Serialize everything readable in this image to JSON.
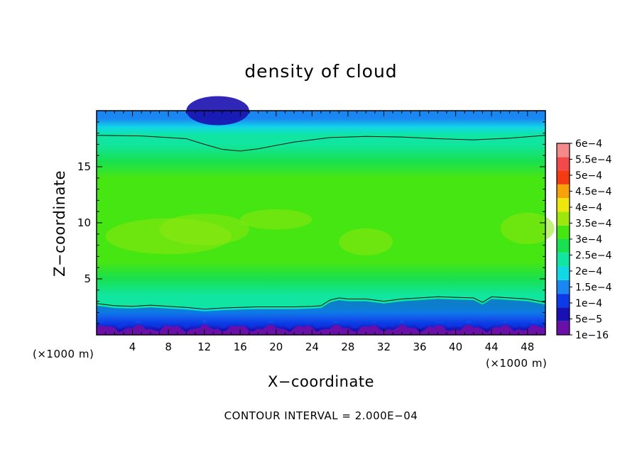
{
  "chart_data": {
    "type": "heatmap",
    "title": "density of cloud",
    "xlabel": "X−coordinate",
    "ylabel": "Z−coordinate",
    "x_unit": "(×1000 m)",
    "z_unit": "(×1000 m)",
    "footnote": "CONTOUR INTERVAL = 2.000E−04",
    "xlim": [
      0,
      50
    ],
    "ylim": [
      0,
      20
    ],
    "x_ticks": [
      4,
      8,
      12,
      16,
      20,
      24,
      28,
      32,
      36,
      40,
      44,
      48
    ],
    "x_tick_labels": [
      "4",
      "8",
      "12",
      "16",
      "20",
      "24",
      "28",
      "32",
      "36",
      "40",
      "44",
      "48"
    ],
    "y_ticks": [
      5,
      10,
      15
    ],
    "y_tick_labels": [
      "5",
      "10",
      "15"
    ],
    "colorbar": {
      "labels": [
        "1e−16",
        "5e−5",
        "1e−4",
        "1.5e−4",
        "2e−4",
        "2.5e−4",
        "3e−4",
        "3.5e−4",
        "4e−4",
        "4.5e−4",
        "5e−4",
        "5.5e−4",
        "6e−4"
      ],
      "values": [
        1e-16,
        5e-05,
        0.0001,
        0.00015,
        0.0002,
        0.00025,
        0.0003,
        0.00035,
        0.0004,
        0.00045,
        0.0005,
        0.00055,
        0.0006
      ],
      "colors": [
        "#6a0fa8",
        "#1a0fb0",
        "#0b3ae6",
        "#1a86f2",
        "#12d8e6",
        "#10e6a0",
        "#18e050",
        "#46e612",
        "#9ee60c",
        "#eee60c",
        "#f7a20a",
        "#f43a10",
        "#f24a4a",
        "#f58a8a"
      ]
    },
    "contour_level": 0.0002,
    "contour_lines": [
      {
        "x": [
          0,
          5,
          10,
          12,
          14,
          16,
          18,
          22,
          26,
          30,
          34,
          38,
          42,
          46,
          50
        ],
        "z": [
          17.8,
          17.75,
          17.5,
          17.0,
          16.55,
          16.4,
          16.6,
          17.2,
          17.6,
          17.7,
          17.65,
          17.5,
          17.4,
          17.55,
          17.8
        ]
      },
      {
        "x": [
          0,
          2,
          4,
          6,
          8,
          10,
          12,
          14,
          16,
          18,
          20,
          22,
          24,
          25,
          26,
          27,
          28,
          30,
          32,
          34,
          36,
          38,
          40,
          42,
          43,
          44,
          46,
          48,
          50
        ],
        "z": [
          2.8,
          2.6,
          2.55,
          2.65,
          2.55,
          2.45,
          2.3,
          2.4,
          2.45,
          2.5,
          2.5,
          2.5,
          2.55,
          2.6,
          3.1,
          3.3,
          3.2,
          3.2,
          3.0,
          3.2,
          3.3,
          3.4,
          3.35,
          3.3,
          2.9,
          3.4,
          3.3,
          3.2,
          2.9
        ]
      }
    ],
    "field_profile": {
      "z": [
        0.4,
        1.0,
        1.5,
        2.0,
        2.6,
        3.5,
        5.0,
        6.5,
        8.0,
        9.5,
        11.0,
        12.5,
        14.0,
        15.5,
        17.0,
        17.8,
        18.5,
        19.3,
        20.0
      ],
      "density": [
        3e-05,
        8e-05,
        0.00012,
        0.00016,
        0.0002,
        0.00023,
        0.000265,
        0.000305,
        0.00034,
        0.000345,
        0.000325,
        0.000305,
        0.0003,
        0.000275,
        0.000235,
        0.0002,
        0.00016,
        0.000125,
        0.000105
      ]
    },
    "grid": false,
    "legend": "colorbar-right"
  }
}
